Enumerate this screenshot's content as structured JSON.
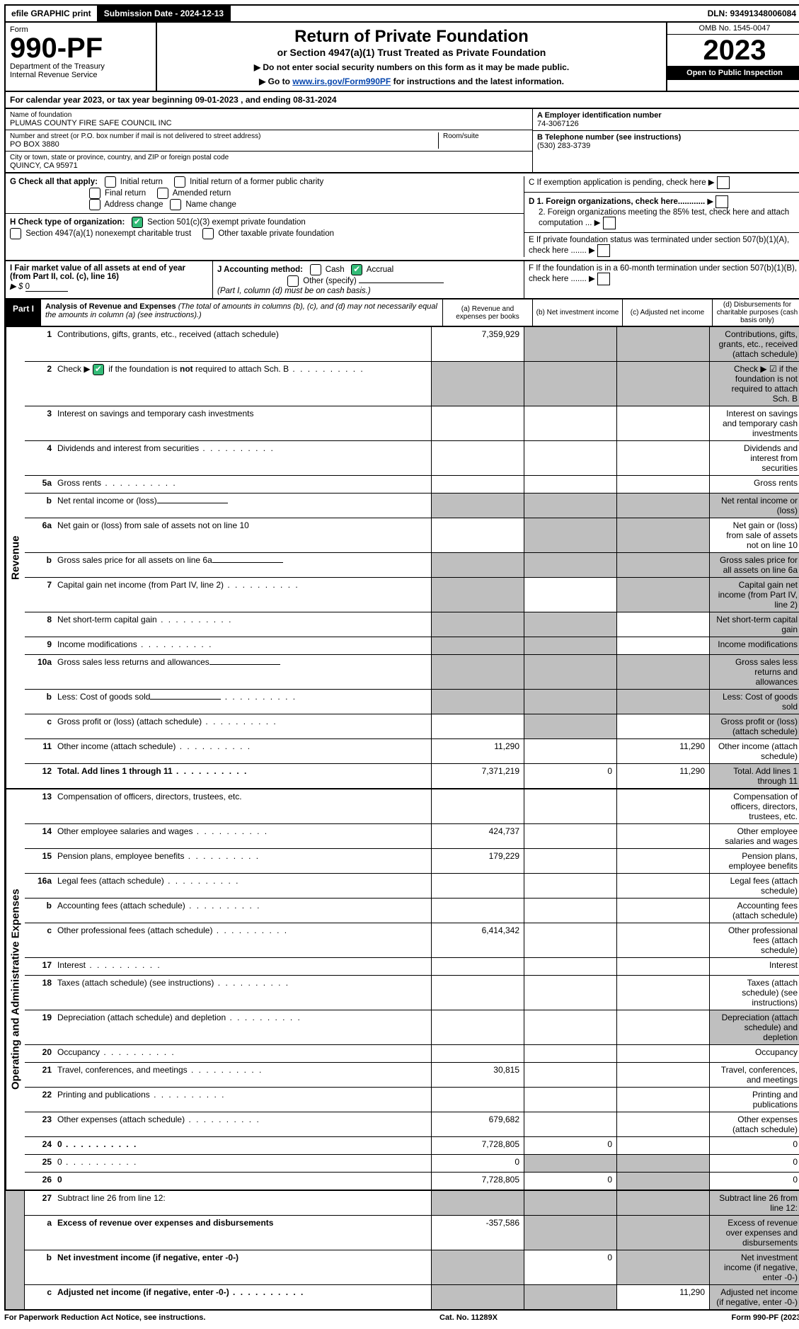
{
  "colors": {
    "black": "#000000",
    "white": "#ffffff",
    "shade": "#bfbfbf",
    "check_green": "#33bb77",
    "link": "#0645ad"
  },
  "topbar": {
    "efile": "efile GRAPHIC print",
    "submission_label": "Submission Date - 2024-12-13",
    "dln": "DLN: 93491348006084"
  },
  "header": {
    "form_word": "Form",
    "form_number": "990-PF",
    "dept": "Department of the Treasury",
    "irs": "Internal Revenue Service",
    "title": "Return of Private Foundation",
    "subtitle": "or Section 4947(a)(1) Trust Treated as Private Foundation",
    "note1": "▶ Do not enter social security numbers on this form as it may be made public.",
    "note2_pre": "▶ Go to ",
    "note2_link": "www.irs.gov/Form990PF",
    "note2_post": " for instructions and the latest information.",
    "omb": "OMB No. 1545-0047",
    "year": "2023",
    "open": "Open to Public Inspection"
  },
  "cal_year": "For calendar year 2023, or tax year beginning 09-01-2023                         , and ending 08-31-2024",
  "foundation": {
    "name_label": "Name of foundation",
    "name": "PLUMAS COUNTY FIRE SAFE COUNCIL INC",
    "addr_label": "Number and street (or P.O. box number if mail is not delivered to street address)",
    "addr": "PO BOX 3880",
    "room_label": "Room/suite",
    "city_label": "City or town, state or province, country, and ZIP or foreign postal code",
    "city": "QUINCY, CA  95971"
  },
  "right_info": {
    "A_label": "A Employer identification number",
    "A_value": "74-3067126",
    "B_label": "B Telephone number (see instructions)",
    "B_value": "(530) 283-3739",
    "C": "C If exemption application is pending, check here",
    "D1": "D 1. Foreign organizations, check here............",
    "D2": "2. Foreign organizations meeting the 85% test, check here and attach computation ...",
    "E": "E  If private foundation status was terminated under section 507(b)(1)(A), check here .......",
    "F": "F  If the foundation is in a 60-month termination under section 507(b)(1)(B), check here ......."
  },
  "G": {
    "label": "G Check all that apply:",
    "opts": [
      "Initial return",
      "Final return",
      "Address change",
      "Initial return of a former public charity",
      "Amended return",
      "Name change"
    ]
  },
  "H": {
    "label": "H Check type of organization:",
    "opt1": "Section 501(c)(3) exempt private foundation",
    "opt2": "Section 4947(a)(1) nonexempt charitable trust",
    "opt3": "Other taxable private foundation"
  },
  "I": {
    "label": "I Fair market value of all assets at end of year (from Part II, col. (c), line 16)",
    "value_prefix": "▶ $",
    "value": "0"
  },
  "J": {
    "label": "J Accounting method:",
    "cash": "Cash",
    "accrual": "Accrual",
    "other": "Other (specify)",
    "note": "(Part I, column (d) must be on cash basis.)"
  },
  "part1": {
    "label": "Part I",
    "title": "Analysis of Revenue and Expenses",
    "paren": "(The total of amounts in columns (b), (c), and (d) may not necessarily equal the amounts in column (a) (see instructions).)",
    "cols": {
      "a": "(a)   Revenue and expenses per books",
      "b": "(b)   Net investment income",
      "c": "(c)  Adjusted net income",
      "d": "(d)  Disbursements for charitable purposes (cash basis only)"
    }
  },
  "side_labels": {
    "revenue": "Revenue",
    "expenses": "Operating and Administrative Expenses"
  },
  "rows": [
    {
      "n": "1",
      "d": "Contributions, gifts, grants, etc., received (attach schedule)",
      "a": "7,359,929",
      "shade": [
        "b",
        "c",
        "d"
      ]
    },
    {
      "n": "2",
      "d": "Check ▶ ☑ if the foundation is not required to attach Sch. B",
      "dots": true,
      "shade": [
        "a",
        "b",
        "c",
        "d"
      ],
      "checkbox": true
    },
    {
      "n": "3",
      "d": "Interest on savings and temporary cash investments"
    },
    {
      "n": "4",
      "d": "Dividends and interest from securities",
      "dots": true
    },
    {
      "n": "5a",
      "d": "Gross rents",
      "dots": true
    },
    {
      "n": "b",
      "d": "Net rental income or (loss)",
      "inline_ul": true,
      "shade": [
        "a",
        "b",
        "c",
        "d"
      ]
    },
    {
      "n": "6a",
      "d": "Net gain or (loss) from sale of assets not on line 10",
      "shade": [
        "b",
        "c"
      ]
    },
    {
      "n": "b",
      "d": "Gross sales price for all assets on line 6a",
      "inline_ul": true,
      "shade": [
        "a",
        "b",
        "c",
        "d"
      ]
    },
    {
      "n": "7",
      "d": "Capital gain net income (from Part IV, line 2)",
      "dots": true,
      "shade": [
        "a",
        "c",
        "d"
      ]
    },
    {
      "n": "8",
      "d": "Net short-term capital gain",
      "dots": true,
      "shade": [
        "a",
        "b",
        "d"
      ]
    },
    {
      "n": "9",
      "d": "Income modifications",
      "dots": true,
      "shade": [
        "a",
        "b",
        "d"
      ]
    },
    {
      "n": "10a",
      "d": "Gross sales less returns and allowances",
      "inline_ul": true,
      "shade": [
        "a",
        "b",
        "c",
        "d"
      ]
    },
    {
      "n": "b",
      "d": "Less: Cost of goods sold",
      "dots": true,
      "inline_ul": true,
      "shade": [
        "a",
        "b",
        "c",
        "d"
      ]
    },
    {
      "n": "c",
      "d": "Gross profit or (loss) (attach schedule)",
      "dots": true,
      "shade": [
        "b",
        "d"
      ]
    },
    {
      "n": "11",
      "d": "Other income (attach schedule)",
      "dots": true,
      "a": "11,290",
      "c": "11,290"
    },
    {
      "n": "12",
      "d": "Total. Add lines 1 through 11",
      "dots": true,
      "bold": true,
      "a": "7,371,219",
      "b": "0",
      "c": "11,290",
      "shade": [
        "d"
      ]
    }
  ],
  "exp_rows": [
    {
      "n": "13",
      "d": "Compensation of officers, directors, trustees, etc."
    },
    {
      "n": "14",
      "d": "Other employee salaries and wages",
      "dots": true,
      "a": "424,737"
    },
    {
      "n": "15",
      "d": "Pension plans, employee benefits",
      "dots": true,
      "a": "179,229"
    },
    {
      "n": "16a",
      "d": "Legal fees (attach schedule)",
      "dots": true
    },
    {
      "n": "b",
      "d": "Accounting fees (attach schedule)",
      "dots": true
    },
    {
      "n": "c",
      "d": "Other professional fees (attach schedule)",
      "dots": true,
      "a": "6,414,342"
    },
    {
      "n": "17",
      "d": "Interest",
      "dots": true
    },
    {
      "n": "18",
      "d": "Taxes (attach schedule) (see instructions)",
      "dots": true
    },
    {
      "n": "19",
      "d": "Depreciation (attach schedule) and depletion",
      "dots": true,
      "shade": [
        "d"
      ]
    },
    {
      "n": "20",
      "d": "Occupancy",
      "dots": true
    },
    {
      "n": "21",
      "d": "Travel, conferences, and meetings",
      "dots": true,
      "a": "30,815"
    },
    {
      "n": "22",
      "d": "Printing and publications",
      "dots": true
    },
    {
      "n": "23",
      "d": "Other expenses (attach schedule)",
      "dots": true,
      "a": "679,682"
    },
    {
      "n": "24",
      "d": "0",
      "dots": true,
      "bold": true,
      "a": "7,728,805",
      "b": "0"
    },
    {
      "n": "25",
      "d": "0",
      "dots": true,
      "a": "0",
      "shade": [
        "b",
        "c"
      ]
    },
    {
      "n": "26",
      "d": "0",
      "bold": true,
      "a": "7,728,805",
      "b": "0",
      "shade": [
        "c"
      ]
    }
  ],
  "final_rows": [
    {
      "n": "27",
      "d": "Subtract line 26 from line 12:",
      "shade": [
        "a",
        "b",
        "c",
        "d"
      ]
    },
    {
      "n": "a",
      "d": "Excess of revenue over expenses and disbursements",
      "bold": true,
      "a": "-357,586",
      "shade": [
        "b",
        "c",
        "d"
      ]
    },
    {
      "n": "b",
      "d": "Net investment income (if negative, enter -0-)",
      "bold": true,
      "shade": [
        "a",
        "c",
        "d"
      ],
      "b": "0"
    },
    {
      "n": "c",
      "d": "Adjusted net income (if negative, enter -0-)",
      "dots": true,
      "bold": true,
      "shade": [
        "a",
        "b",
        "d"
      ],
      "c": "11,290"
    }
  ],
  "footer": {
    "left": "For Paperwork Reduction Act Notice, see instructions.",
    "mid": "Cat. No. 11289X",
    "right": "Form 990-PF (2023)"
  }
}
